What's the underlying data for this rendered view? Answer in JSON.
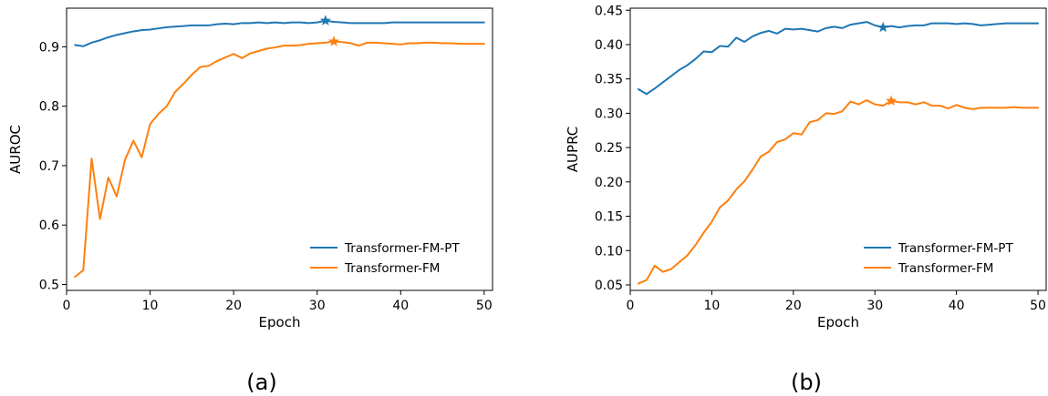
{
  "chart_data": [
    {
      "type": "line",
      "caption": "(a)",
      "xlabel": "Epoch",
      "ylabel": "AUROC",
      "xlim": [
        0,
        51
      ],
      "ylim": [
        0.49,
        0.965
      ],
      "xticks": [
        0,
        10,
        20,
        30,
        40,
        50
      ],
      "yticks": [
        0.5,
        0.6,
        0.7,
        0.8,
        0.9
      ],
      "ytick_labels": [
        "0.5",
        "0.6",
        "0.7",
        "0.8",
        "0.9"
      ],
      "legend": "bottom-right",
      "grid": false,
      "series": [
        {
          "name": "Transformer-FM-PT",
          "color": "#1f77b4",
          "best_epoch": 31,
          "values": [
            0.903,
            0.901,
            0.907,
            0.911,
            0.916,
            0.92,
            0.923,
            0.926,
            0.928,
            0.929,
            0.931,
            0.933,
            0.934,
            0.935,
            0.936,
            0.936,
            0.936,
            0.938,
            0.939,
            0.938,
            0.94,
            0.94,
            0.941,
            0.94,
            0.941,
            0.94,
            0.941,
            0.941,
            0.94,
            0.941,
            0.944,
            0.942,
            0.941,
            0.94,
            0.94,
            0.94,
            0.94,
            0.94,
            0.941,
            0.941,
            0.941,
            0.941,
            0.941,
            0.941,
            0.941,
            0.941,
            0.941,
            0.941,
            0.941,
            0.941
          ]
        },
        {
          "name": "Transformer-FM",
          "color": "#ff7f0e",
          "best_epoch": 32,
          "values": [
            0.513,
            0.524,
            0.712,
            0.61,
            0.68,
            0.648,
            0.71,
            0.742,
            0.714,
            0.77,
            0.787,
            0.8,
            0.824,
            0.838,
            0.853,
            0.866,
            0.868,
            0.876,
            0.882,
            0.888,
            0.881,
            0.889,
            0.893,
            0.897,
            0.899,
            0.902,
            0.902,
            0.903,
            0.905,
            0.906,
            0.907,
            0.909,
            0.908,
            0.906,
            0.902,
            0.907,
            0.907,
            0.906,
            0.905,
            0.904,
            0.906,
            0.906,
            0.907,
            0.907,
            0.906,
            0.906,
            0.905,
            0.905,
            0.905,
            0.905
          ]
        }
      ]
    },
    {
      "type": "line",
      "caption": "(b)",
      "xlabel": "Epoch",
      "ylabel": "AUPRC",
      "xlim": [
        0,
        51
      ],
      "ylim": [
        0.042,
        0.453
      ],
      "xticks": [
        0,
        10,
        20,
        30,
        40,
        50
      ],
      "yticks": [
        0.05,
        0.1,
        0.15,
        0.2,
        0.25,
        0.3,
        0.35,
        0.4,
        0.45
      ],
      "ytick_labels": [
        "0.05",
        "0.10",
        "0.15",
        "0.20",
        "0.25",
        "0.30",
        "0.35",
        "0.40",
        "0.45"
      ],
      "legend": "bottom-right",
      "grid": false,
      "series": [
        {
          "name": "Transformer-FM-PT",
          "color": "#1f77b4",
          "best_epoch": 31,
          "values": [
            0.335,
            0.328,
            0.336,
            0.345,
            0.354,
            0.363,
            0.37,
            0.379,
            0.39,
            0.389,
            0.398,
            0.397,
            0.41,
            0.404,
            0.412,
            0.417,
            0.42,
            0.416,
            0.423,
            0.422,
            0.423,
            0.421,
            0.419,
            0.424,
            0.426,
            0.424,
            0.429,
            0.431,
            0.433,
            0.428,
            0.425,
            0.427,
            0.425,
            0.427,
            0.428,
            0.428,
            0.431,
            0.431,
            0.431,
            0.43,
            0.431,
            0.43,
            0.428,
            0.429,
            0.43,
            0.431,
            0.431,
            0.431,
            0.431,
            0.431
          ]
        },
        {
          "name": "Transformer-FM",
          "color": "#ff7f0e",
          "best_epoch": 32,
          "values": [
            0.052,
            0.057,
            0.078,
            0.069,
            0.073,
            0.083,
            0.093,
            0.108,
            0.126,
            0.142,
            0.163,
            0.173,
            0.189,
            0.201,
            0.218,
            0.237,
            0.244,
            0.258,
            0.262,
            0.271,
            0.269,
            0.287,
            0.29,
            0.3,
            0.299,
            0.303,
            0.317,
            0.313,
            0.319,
            0.313,
            0.311,
            0.318,
            0.316,
            0.316,
            0.313,
            0.316,
            0.311,
            0.311,
            0.307,
            0.312,
            0.308,
            0.306,
            0.308,
            0.308,
            0.308,
            0.308,
            0.309,
            0.308,
            0.308,
            0.308
          ]
        }
      ]
    }
  ]
}
